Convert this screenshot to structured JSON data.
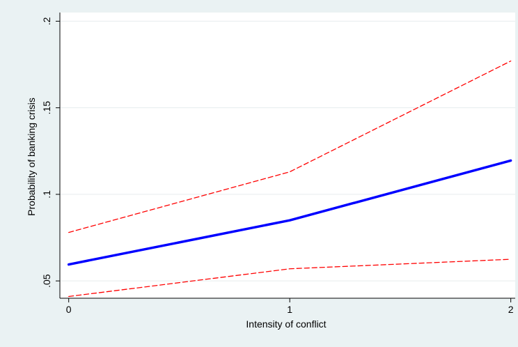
{
  "chart_data": {
    "type": "line",
    "xlabel": "Intensity of conflict",
    "ylabel": "Probability of banking crisis",
    "x": [
      0,
      1,
      2
    ],
    "xticks": [
      "0",
      "1",
      "2"
    ],
    "xlim": [
      -0.04,
      2.02
    ],
    "yticks": [
      ".05",
      ".1",
      ".15",
      ".2"
    ],
    "ytick_values": [
      0.05,
      0.1,
      0.15,
      0.2
    ],
    "ylim": [
      0.04,
      0.205
    ],
    "grid": true,
    "series": [
      {
        "role": "upper-ci",
        "values": [
          0.078,
          0.113,
          0.177
        ],
        "color": "#ff0000",
        "style": "dashed"
      },
      {
        "role": "estimate",
        "values": [
          0.0595,
          0.085,
          0.1195
        ],
        "color": "#0000ff",
        "style": "solid"
      },
      {
        "role": "lower-ci",
        "values": [
          0.041,
          0.057,
          0.0625
        ],
        "color": "#ff0000",
        "style": "dashed"
      }
    ]
  }
}
